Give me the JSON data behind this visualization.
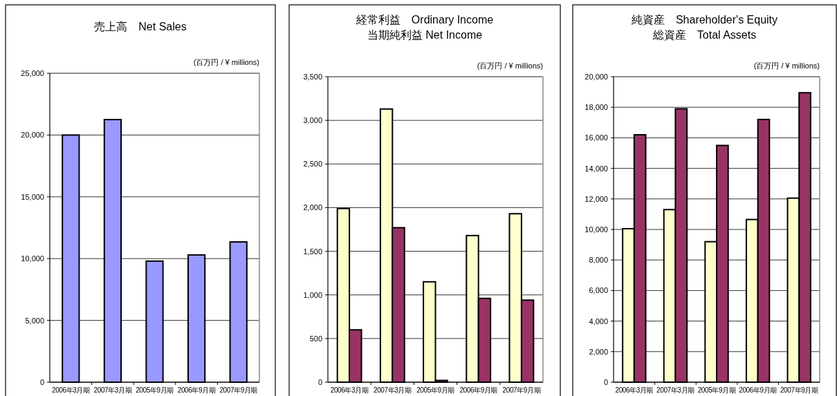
{
  "chart_data": [
    {
      "type": "bar",
      "title": "売上高　Net Sales",
      "ylabel": "(百万円 / ¥ millions)",
      "categories": [
        "2006年3月期",
        "2007年3月期",
        "2005年9月期",
        "2006年9月期",
        "2007年9月期"
      ],
      "series": [
        {
          "color": "#9999ff",
          "values": [
            20000,
            21250,
            9800,
            10300,
            11350
          ]
        }
      ],
      "ylim": [
        0,
        25000
      ],
      "yticks": [
        {
          "value": 0,
          "label": "0"
        },
        {
          "value": 5000,
          "label": "5,000"
        },
        {
          "value": 10000,
          "label": "10,000"
        },
        {
          "value": 15000,
          "label": "15,000"
        },
        {
          "value": 20000,
          "label": "20,000"
        },
        {
          "value": 25000,
          "label": "25,000"
        }
      ],
      "grid": "y"
    },
    {
      "type": "bar",
      "title": "経常利益　Ordinary Income",
      "subtitle": "当期純利益 Net Income",
      "ylabel": "(百万円 / ¥ millions)",
      "categories": [
        "2006年3月期",
        "2007年3月期",
        "2005年9月期",
        "2006年9月期",
        "2007年9月期"
      ],
      "series": [
        {
          "color": "#ffffcc",
          "values": [
            1990,
            3130,
            1150,
            1680,
            1930
          ]
        },
        {
          "color": "#993366",
          "values": [
            600,
            1770,
            20,
            960,
            940
          ]
        }
      ],
      "ylim": [
        0,
        3500
      ],
      "yticks": [
        {
          "value": 0,
          "label": "0"
        },
        500,
        {
          "value": 1000,
          "label": "1,000"
        },
        {
          "value": 1500,
          "label": "1,500"
        },
        {
          "value": 2000,
          "label": "2,000"
        },
        {
          "value": 2500,
          "label": "2,500"
        },
        {
          "value": 3000,
          "label": "3,000"
        },
        {
          "value": 3500,
          "label": "3,500"
        }
      ],
      "grid": "y"
    },
    {
      "type": "bar",
      "title": "純資産　Shareholder's Equity",
      "subtitle": "総資産　Total Assets",
      "ylabel": "(百万円 / ¥ millions)",
      "categories": [
        "2006年3月期",
        "2007年3月期",
        "2005年9月期",
        "2006年9月期",
        "2007年9月期"
      ],
      "series": [
        {
          "color": "#ffffcc",
          "values": [
            10050,
            11300,
            9200,
            10650,
            12050
          ]
        },
        {
          "color": "#993366",
          "values": [
            16200,
            17900,
            15500,
            17200,
            18950
          ]
        }
      ],
      "ylim": [
        0,
        20000
      ],
      "yticks": [
        {
          "value": 0,
          "label": "0"
        },
        {
          "value": 2000,
          "label": "2,000"
        },
        {
          "value": 4000,
          "label": "4,000"
        },
        {
          "value": 6000,
          "label": "6,000"
        },
        {
          "value": 8000,
          "label": "8,000"
        },
        {
          "value": 10000,
          "label": "10,000"
        },
        {
          "value": 12000,
          "label": "12,000"
        },
        {
          "value": 14000,
          "label": "14,000"
        },
        {
          "value": 16000,
          "label": "16,000"
        },
        {
          "value": 18000,
          "label": "18,000"
        },
        {
          "value": 20000,
          "label": "20,000"
        }
      ],
      "grid": "y"
    }
  ]
}
